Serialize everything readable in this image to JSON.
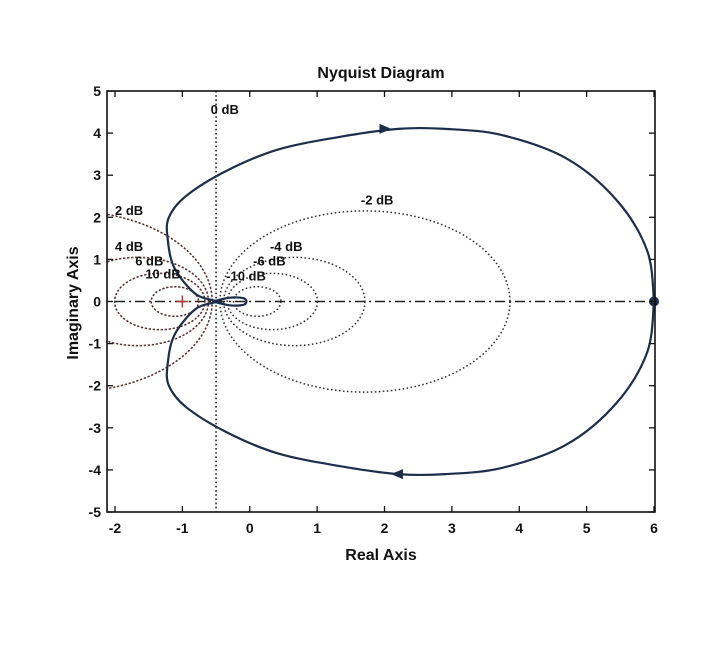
{
  "chart_data": {
    "type": "nyquist",
    "title": "Nyquist Diagram",
    "xlabel": "Real Axis",
    "ylabel": "Imaginary Axis",
    "xlim": [
      -2,
      6
    ],
    "ylim": [
      -5,
      5
    ],
    "xticks": [
      -2,
      -1,
      0,
      1,
      2,
      3,
      4,
      5,
      6
    ],
    "yticks": [
      -5,
      -4,
      -3,
      -2,
      -1,
      0,
      1,
      2,
      3,
      4,
      5
    ],
    "critical_point": [
      -1,
      0
    ],
    "m_circles": [
      {
        "label": "-2 dB",
        "db": -2
      },
      {
        "label": "-4 dB",
        "db": -4
      },
      {
        "label": "-6 dB",
        "db": -6
      },
      {
        "label": "-10 dB",
        "db": -10
      },
      {
        "label": "2 dB",
        "db": 2
      },
      {
        "label": "4 dB",
        "db": 4
      },
      {
        "label": "6 dB",
        "db": 6
      },
      {
        "label": "10 dB",
        "db": 10
      }
    ],
    "zero_db_label": "0 dB",
    "series": [
      {
        "name": "nyquist-curve",
        "points": [
          [
            6.0,
            0.0
          ],
          [
            5.9,
            1.2
          ],
          [
            5.45,
            2.4
          ],
          [
            4.7,
            3.4
          ],
          [
            3.75,
            3.95
          ],
          [
            2.9,
            4.1
          ],
          [
            2.2,
            4.1
          ],
          [
            1.3,
            3.9
          ],
          [
            0.4,
            3.6
          ],
          [
            -0.35,
            3.1
          ],
          [
            -0.95,
            2.5
          ],
          [
            -1.2,
            2.0
          ],
          [
            -1.22,
            1.5
          ],
          [
            -1.12,
            0.8
          ],
          [
            -0.82,
            0.2
          ],
          [
            -0.55,
            0.03
          ],
          [
            -0.42,
            0.0
          ],
          [
            -0.55,
            -0.03
          ],
          [
            -0.82,
            -0.2
          ],
          [
            -1.12,
            -0.8
          ],
          [
            -1.22,
            -1.5
          ],
          [
            -1.2,
            -2.0
          ],
          [
            -0.95,
            -2.5
          ],
          [
            -0.35,
            -3.1
          ],
          [
            0.4,
            -3.6
          ],
          [
            1.3,
            -3.9
          ],
          [
            2.2,
            -4.1
          ],
          [
            2.9,
            -4.1
          ],
          [
            3.75,
            -3.95
          ],
          [
            4.7,
            -3.4
          ],
          [
            5.45,
            -2.4
          ],
          [
            5.9,
            -1.2
          ],
          [
            6.0,
            0.0
          ]
        ],
        "hf_loop": [
          [
            -0.55,
            0.0
          ],
          [
            -0.3,
            0.09
          ],
          [
            -0.1,
            0.08
          ],
          [
            -0.05,
            0.0
          ],
          [
            -0.1,
            -0.08
          ],
          [
            -0.3,
            -0.09
          ],
          [
            -0.55,
            0.0
          ]
        ],
        "arrows": [
          {
            "at": [
              2.0,
              4.1
            ],
            "direction": "right"
          },
          {
            "at": [
              2.2,
              -4.1
            ],
            "direction": "left"
          }
        ],
        "endpoint": [
          6.0,
          0.0
        ]
      }
    ]
  }
}
